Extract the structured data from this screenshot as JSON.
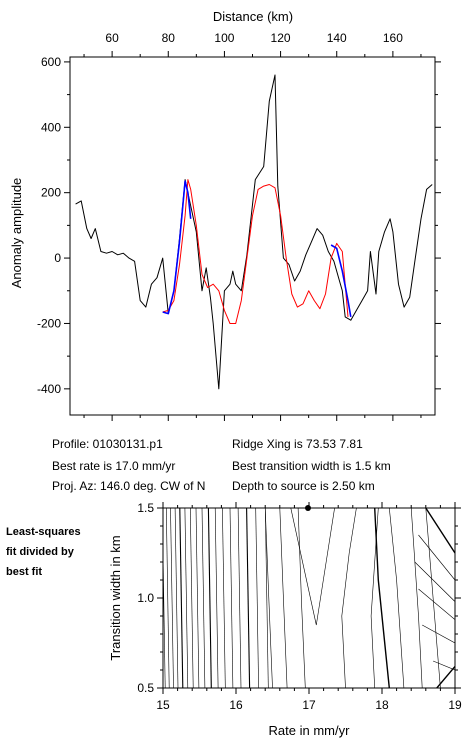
{
  "chart_data": [
    {
      "type": "line",
      "xlabel": "Distance (km)",
      "ylabel": "Anomaly amplitude",
      "xlim": [
        45,
        175
      ],
      "ylim": [
        -480,
        615
      ],
      "xticks": [
        60,
        80,
        100,
        120,
        140,
        160
      ],
      "yticks": [
        -400,
        -200,
        0,
        200,
        400,
        600
      ],
      "x_axis_position": "top",
      "series": [
        {
          "color": "#000000",
          "x": [
            47,
            49,
            51,
            52.5,
            54,
            56,
            58,
            60,
            62,
            64,
            66,
            68,
            70,
            72,
            74,
            76,
            78,
            80,
            82,
            84,
            85,
            86,
            88,
            90,
            92,
            93.5,
            95,
            96,
            98,
            100,
            102,
            103,
            104,
            106,
            108,
            111,
            114,
            116,
            118,
            119,
            121,
            123,
            125,
            127,
            129,
            131,
            133,
            135,
            137,
            139,
            141,
            142,
            143,
            145,
            147,
            149,
            151,
            152,
            154,
            155,
            157,
            159,
            160,
            162,
            164,
            166,
            168,
            170,
            172,
            174
          ],
          "y": [
            165,
            175,
            90,
            60,
            90,
            20,
            15,
            20,
            10,
            15,
            0,
            -10,
            -130,
            -150,
            -80,
            -60,
            0,
            -170,
            -100,
            60,
            150,
            240,
            160,
            80,
            -100,
            -30,
            -120,
            -200,
            -400,
            -100,
            -80,
            -40,
            -80,
            -100,
            10,
            240,
            280,
            480,
            560,
            220,
            0,
            -20,
            -70,
            -40,
            10,
            50,
            90,
            70,
            20,
            -10,
            -70,
            -100,
            -180,
            -190,
            -160,
            -130,
            -100,
            20,
            -110,
            20,
            80,
            120,
            80,
            -80,
            -150,
            -120,
            0,
            120,
            210,
            225
          ]
        },
        {
          "color": "#ff0000",
          "x": [
            78,
            80,
            82,
            84,
            86,
            87,
            88,
            90,
            92,
            94,
            96,
            98,
            100,
            102,
            104,
            106,
            108,
            110,
            112,
            114,
            116,
            118,
            120,
            122,
            124,
            126,
            128,
            130,
            132,
            134,
            136,
            138,
            140,
            142,
            144
          ],
          "y": [
            -165,
            -160,
            -130,
            -20,
            130,
            240,
            210,
            100,
            -50,
            -90,
            -80,
            -100,
            -160,
            -200,
            -200,
            -130,
            0,
            130,
            210,
            220,
            225,
            215,
            130,
            0,
            -110,
            -150,
            -140,
            -100,
            -130,
            -155,
            -110,
            0,
            45,
            20,
            -180
          ]
        },
        {
          "color": "#0000ff",
          "x": [
            78,
            80,
            82,
            84,
            86,
            87,
            88
          ],
          "y": [
            -165,
            -170,
            -100,
            50,
            235,
            200,
            120
          ]
        },
        {
          "color": "#0000ff",
          "x": [
            138,
            140,
            142,
            144,
            145
          ],
          "y": [
            40,
            30,
            -40,
            -130,
            -180
          ]
        }
      ]
    },
    {
      "type": "contour",
      "xlabel": "Rate in mm/yr",
      "ylabel": "Transition width in km",
      "xlim": [
        15,
        19
      ],
      "ylim": [
        0.5,
        1.5
      ],
      "xticks": [
        15,
        16,
        17,
        18,
        19
      ],
      "yticks": [
        0.5,
        1.0,
        1.5
      ],
      "best_fit": {
        "rate": 17.0,
        "width": 1.5
      }
    }
  ],
  "info": {
    "profile": "Profile: 01030131.p1",
    "best_rate": "Best rate is 17.0 mm/yr",
    "proj_az": "Proj. Az: 146.0 deg. CW of N",
    "ridge_xing": "Ridge Xing is 73.53 7.81",
    "best_width": "Best transition width is 1.5 km",
    "depth": "Depth to source is   2.50 km"
  },
  "side_note": [
    "Least-squares",
    "fit divided by",
    "best fit"
  ]
}
